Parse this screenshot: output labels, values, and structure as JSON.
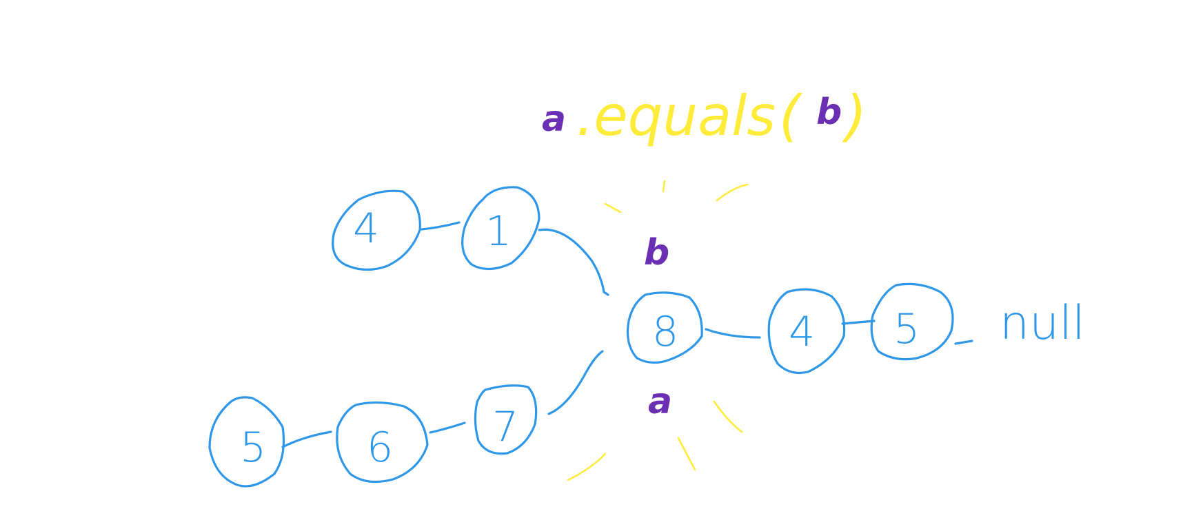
{
  "colors": {
    "background": "#ffffff",
    "node": "#2f97e8",
    "expression": "#ffec3a",
    "variable": "#6b2fb3"
  },
  "expression": {
    "receiver": "a",
    "method": ".equals",
    "open_paren": "(",
    "argument": "b",
    "close_paren": ")"
  },
  "pointers": {
    "b_label": "b",
    "a_label": "a"
  },
  "list_top": [
    "4",
    "1"
  ],
  "list_bottom": [
    "5",
    "6",
    "7"
  ],
  "shared_node": "8",
  "tail": [
    "4",
    "5"
  ],
  "terminator": "null"
}
